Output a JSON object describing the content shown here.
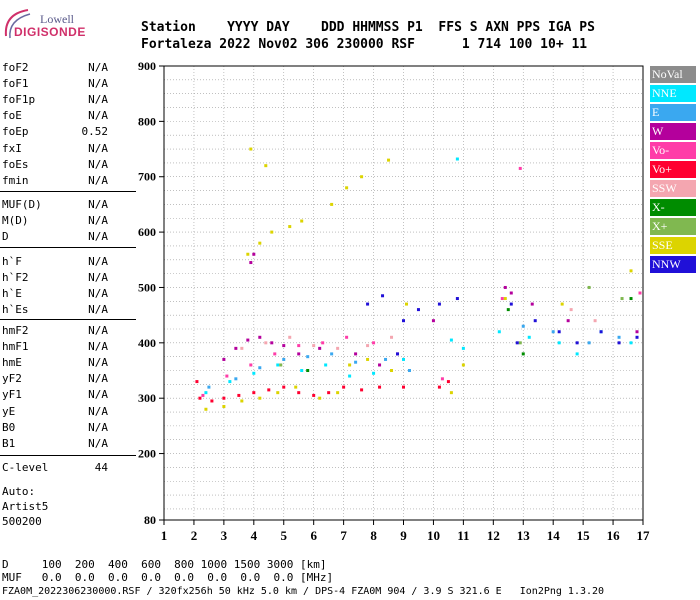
{
  "logo": {
    "line1": "Lowell",
    "line2": "DIGISONDE"
  },
  "header": {
    "row1": "Station    YYYY DAY    DDD HHMMSS P1  FFS S AXN PPS IGA PS",
    "row2": "Fortaleza 2022 Nov02 306 230000 RSF      1 714 100 10+ 11"
  },
  "params": [
    [
      {
        "label": "foF2",
        "value": "N/A"
      },
      {
        "label": "foF1",
        "value": "N/A"
      },
      {
        "label": "foF1p",
        "value": "N/A"
      },
      {
        "label": "foE",
        "value": "N/A"
      },
      {
        "label": "foEp",
        "value": "0.52"
      },
      {
        "label": "fxI",
        "value": "N/A"
      },
      {
        "label": "foEs",
        "value": "N/A"
      },
      {
        "label": "fmin",
        "value": "N/A"
      }
    ],
    [
      {
        "label": "MUF(D)",
        "value": "N/A"
      },
      {
        "label": "M(D)",
        "value": "N/A"
      },
      {
        "label": "D",
        "value": "N/A"
      }
    ],
    [
      {
        "label": "h`F",
        "value": "N/A"
      },
      {
        "label": "h`F2",
        "value": "N/A"
      },
      {
        "label": "h`E",
        "value": "N/A"
      },
      {
        "label": "h`Es",
        "value": "N/A"
      }
    ],
    [
      {
        "label": "hmF2",
        "value": "N/A"
      },
      {
        "label": "hmF1",
        "value": "N/A"
      },
      {
        "label": "hmE",
        "value": "N/A"
      },
      {
        "label": "yF2",
        "value": "N/A"
      },
      {
        "label": "yF1",
        "value": "N/A"
      },
      {
        "label": "yE",
        "value": "N/A"
      },
      {
        "label": "B0",
        "value": "N/A"
      },
      {
        "label": "B1",
        "value": "N/A"
      }
    ],
    [
      {
        "label": "C-level",
        "value": "44"
      }
    ]
  ],
  "auto": {
    "line1": "Auto:",
    "line2": "Artist5",
    "line3": "500200"
  },
  "footer": {
    "row1": "D     100  200  400  600  800 1000 1500 3000 [km]",
    "row2": "MUF   0.0  0.0  0.0  0.0  0.0  0.0  0.0  0.0 [MHz]",
    "row3": "FZA0M_2022306230000.RSF / 320fx256h 50 kHz 5.0 km / DPS-4 FZA0M 904 / 3.9 S 321.6 E   Ion2Png 1.3.20"
  },
  "legend": [
    {
      "label": "NoVal",
      "color": "#8c8c8c"
    },
    {
      "label": "NNE",
      "color": "#00e8ff"
    },
    {
      "label": "E",
      "color": "#3aa8f0"
    },
    {
      "label": "W",
      "color": "#b4009c"
    },
    {
      "label": "Vo-",
      "color": "#ff3ca8"
    },
    {
      "label": "Vo+",
      "color": "#ff0030"
    },
    {
      "label": "SSW",
      "color": "#f4a6b0"
    },
    {
      "label": "X-",
      "color": "#008c00"
    },
    {
      "label": "X+",
      "color": "#80b850"
    },
    {
      "label": "SSE",
      "color": "#dcd400"
    },
    {
      "label": "NNW",
      "color": "#2010d8"
    }
  ],
  "chart_data": {
    "type": "scatter",
    "xlim": [
      1,
      17
    ],
    "ylim": [
      80,
      900
    ],
    "xticks": [
      "1",
      "2",
      "3",
      "4",
      "5",
      "6",
      "7",
      "8",
      "9",
      "10",
      "11",
      "12",
      "13",
      "14",
      "15",
      "16",
      "17"
    ],
    "yticks": [
      "900",
      "800",
      "700",
      "600",
      "500",
      "400",
      "300",
      "200",
      "80"
    ],
    "grid": true,
    "legend_position": "right",
    "series": [
      {
        "name": "W",
        "points": [
          [
            3.0,
            370
          ],
          [
            3.4,
            390
          ],
          [
            3.8,
            405
          ],
          [
            4.2,
            410
          ],
          [
            4.6,
            400
          ],
          [
            5.0,
            395
          ],
          [
            5.5,
            380
          ],
          [
            6.2,
            390
          ],
          [
            7.4,
            380
          ],
          [
            8.2,
            360
          ],
          [
            8.8,
            380
          ],
          [
            10.0,
            440
          ],
          [
            12.4,
            500
          ],
          [
            12.6,
            490
          ],
          [
            13.3,
            470
          ],
          [
            14.5,
            440
          ],
          [
            16.8,
            420
          ],
          [
            3.9,
            545
          ],
          [
            4.0,
            560
          ]
        ]
      },
      {
        "name": "Vo+",
        "points": [
          [
            2.2,
            300
          ],
          [
            2.6,
            295
          ],
          [
            3.0,
            300
          ],
          [
            3.5,
            305
          ],
          [
            4.0,
            310
          ],
          [
            4.5,
            315
          ],
          [
            5.0,
            320
          ],
          [
            5.5,
            310
          ],
          [
            6.0,
            305
          ],
          [
            6.5,
            310
          ],
          [
            7.0,
            320
          ],
          [
            7.6,
            315
          ],
          [
            8.2,
            320
          ],
          [
            9.0,
            320
          ],
          [
            10.2,
            320
          ],
          [
            10.5,
            330
          ],
          [
            2.1,
            330
          ]
        ]
      },
      {
        "name": "NNE",
        "points": [
          [
            2.4,
            310
          ],
          [
            3.2,
            330
          ],
          [
            4.0,
            345
          ],
          [
            4.8,
            360
          ],
          [
            5.6,
            350
          ],
          [
            6.4,
            360
          ],
          [
            7.2,
            340
          ],
          [
            8.0,
            345
          ],
          [
            9.0,
            370
          ],
          [
            10.6,
            405
          ],
          [
            11.0,
            390
          ],
          [
            12.2,
            420
          ],
          [
            13.2,
            410
          ],
          [
            14.2,
            400
          ],
          [
            14.8,
            380
          ],
          [
            15.6,
            420
          ],
          [
            16.6,
            400
          ],
          [
            10.8,
            732
          ]
        ]
      },
      {
        "name": "E",
        "points": [
          [
            2.5,
            320
          ],
          [
            3.4,
            335
          ],
          [
            4.2,
            355
          ],
          [
            5.0,
            370
          ],
          [
            5.8,
            375
          ],
          [
            6.6,
            380
          ],
          [
            7.4,
            365
          ],
          [
            8.4,
            370
          ],
          [
            9.2,
            350
          ],
          [
            13.0,
            430
          ],
          [
            14.0,
            420
          ],
          [
            15.2,
            400
          ],
          [
            16.2,
            410
          ]
        ]
      },
      {
        "name": "Vo-",
        "points": [
          [
            2.3,
            305
          ],
          [
            3.1,
            340
          ],
          [
            3.9,
            360
          ],
          [
            4.7,
            380
          ],
          [
            5.5,
            395
          ],
          [
            6.3,
            400
          ],
          [
            7.1,
            410
          ],
          [
            8.0,
            400
          ],
          [
            10.3,
            335
          ],
          [
            12.3,
            480
          ],
          [
            16.9,
            490
          ],
          [
            12.9,
            715
          ]
        ]
      },
      {
        "name": "SSW",
        "points": [
          [
            3.6,
            390
          ],
          [
            4.4,
            400
          ],
          [
            5.2,
            410
          ],
          [
            6.0,
            395
          ],
          [
            6.8,
            390
          ],
          [
            7.8,
            395
          ],
          [
            8.6,
            410
          ],
          [
            14.6,
            460
          ],
          [
            15.4,
            440
          ]
        ]
      },
      {
        "name": "X-",
        "points": [
          [
            5.8,
            350
          ],
          [
            12.5,
            460
          ],
          [
            13.0,
            380
          ],
          [
            16.6,
            480
          ]
        ]
      },
      {
        "name": "X+",
        "points": [
          [
            4.9,
            360
          ],
          [
            12.9,
            400
          ],
          [
            15.2,
            500
          ],
          [
            16.3,
            480
          ]
        ]
      },
      {
        "name": "SSE",
        "points": [
          [
            2.4,
            280
          ],
          [
            3.0,
            285
          ],
          [
            3.6,
            295
          ],
          [
            4.2,
            300
          ],
          [
            4.8,
            310
          ],
          [
            5.4,
            320
          ],
          [
            6.2,
            300
          ],
          [
            6.8,
            310
          ],
          [
            7.2,
            360
          ],
          [
            7.8,
            370
          ],
          [
            8.6,
            350
          ],
          [
            10.6,
            310
          ],
          [
            11.0,
            360
          ],
          [
            12.4,
            480
          ],
          [
            14.3,
            470
          ],
          [
            16.6,
            530
          ],
          [
            3.8,
            560
          ],
          [
            4.2,
            580
          ],
          [
            4.6,
            600
          ],
          [
            5.2,
            610
          ],
          [
            5.6,
            620
          ],
          [
            3.9,
            750
          ],
          [
            4.4,
            720
          ],
          [
            7.1,
            680
          ],
          [
            7.6,
            700
          ],
          [
            8.5,
            730
          ],
          [
            6.6,
            650
          ],
          [
            9.1,
            470
          ]
        ]
      },
      {
        "name": "NNW",
        "points": [
          [
            8.8,
            380
          ],
          [
            9.0,
            440
          ],
          [
            9.5,
            460
          ],
          [
            10.2,
            470
          ],
          [
            10.8,
            480
          ],
          [
            12.6,
            470
          ],
          [
            12.8,
            400
          ],
          [
            13.4,
            440
          ],
          [
            14.2,
            420
          ],
          [
            14.8,
            400
          ],
          [
            15.6,
            420
          ],
          [
            16.2,
            400
          ],
          [
            16.8,
            410
          ],
          [
            7.8,
            470
          ],
          [
            8.3,
            485
          ]
        ]
      }
    ]
  }
}
